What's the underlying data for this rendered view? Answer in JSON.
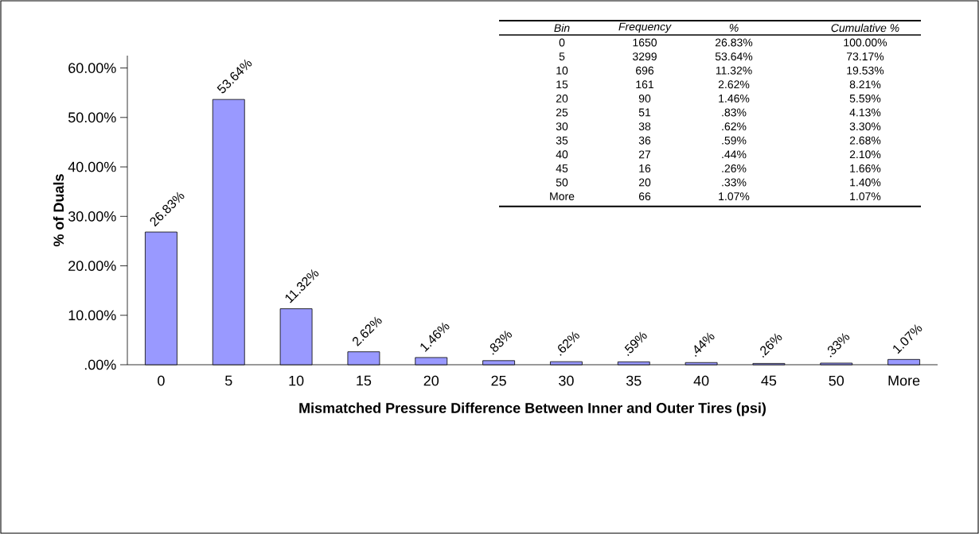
{
  "chart_data": {
    "type": "bar",
    "xlabel": "Mismatched Pressure Difference Between Inner and Outer Tires (psi)",
    "ylabel": "% of Duals",
    "categories": [
      "0",
      "5",
      "10",
      "15",
      "20",
      "25",
      "30",
      "35",
      "40",
      "45",
      "50",
      "More"
    ],
    "values": [
      26.83,
      53.64,
      11.32,
      2.62,
      1.46,
      0.83,
      0.62,
      0.59,
      0.44,
      0.26,
      0.33,
      1.07
    ],
    "value_labels": [
      "26.83%",
      "53.64%",
      "11.32%",
      "2.62%",
      "1.46%",
      ".83%",
      ".62%",
      ".59%",
      ".44%",
      ".26%",
      ".33%",
      "1.07%"
    ],
    "color": "#9999ff",
    "ylim": [
      0,
      62.5
    ],
    "yticks": [
      {
        "value": 0,
        "label": ".00%"
      },
      {
        "value": 10,
        "label": "10.00%"
      },
      {
        "value": 20,
        "label": "20.00%"
      },
      {
        "value": 30,
        "label": "30.00%"
      },
      {
        "value": 40,
        "label": "40.00%"
      },
      {
        "value": 50,
        "label": "50.00%"
      },
      {
        "value": 60,
        "label": "60.00%"
      }
    ],
    "annotations": [
      "Bin",
      "Frequency",
      "%",
      "Cumulative %",
      "0",
      "1650",
      "26.83%",
      "100.00%",
      "5",
      "3299",
      "53.64%",
      "73.17%",
      "10",
      "696",
      "11.32%",
      "19.53%",
      "15",
      "161",
      "2.62%",
      "8.21%",
      "20",
      "90",
      "1.46%",
      "5.59%",
      "25",
      "51",
      ".83%",
      "4.13%",
      "30",
      "38",
      ".62%",
      "3.30%",
      "35",
      "36",
      ".59%",
      "2.68%",
      "40",
      "27",
      ".44%",
      "2.10%",
      "45",
      "16",
      ".26%",
      "1.66%",
      "50",
      "20",
      ".33%",
      "1.40%",
      "More",
      "66",
      "1.07%",
      "1.07%"
    ]
  }
}
